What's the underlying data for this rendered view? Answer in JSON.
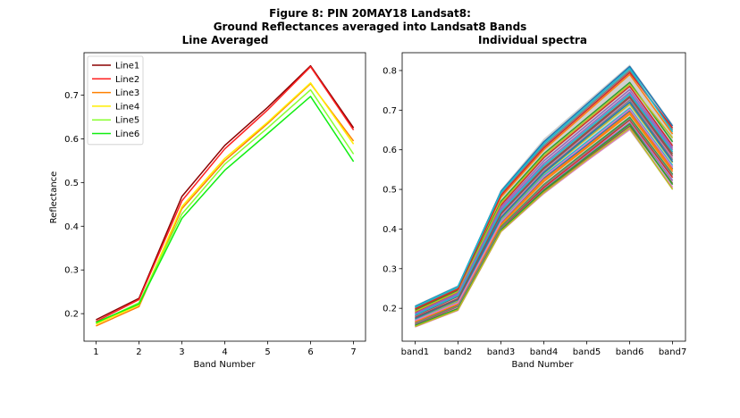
{
  "figure": {
    "title_line1": "Figure 8: PIN 20MAY18  Landsat8:",
    "title_line2": "Ground Reflectances averaged into Landsat8 Bands"
  },
  "chart_data": [
    {
      "type": "line",
      "title": "Line Averaged",
      "xlabel": "Band Number",
      "ylabel": "Reflectance",
      "x": [
        1,
        2,
        3,
        4,
        5,
        6,
        7
      ],
      "xticks": [
        "1",
        "2",
        "3",
        "4",
        "5",
        "6",
        "7"
      ],
      "xlim": [
        0.72,
        7.28
      ],
      "ylim": [
        0.137,
        0.797
      ],
      "yticks": [
        "0.2",
        "0.3",
        "0.4",
        "0.5",
        "0.6",
        "0.7"
      ],
      "legend": "top-left",
      "series": [
        {
          "name": "Line1",
          "color": "#8b0000",
          "values": [
            0.186,
            0.235,
            0.468,
            0.585,
            0.672,
            0.767,
            0.625
          ]
        },
        {
          "name": "Line2",
          "color": "#ff2020",
          "values": [
            0.182,
            0.232,
            0.458,
            0.577,
            0.666,
            0.765,
            0.62
          ]
        },
        {
          "name": "Line3",
          "color": "#ff8000",
          "values": [
            0.172,
            0.216,
            0.44,
            0.55,
            0.635,
            0.726,
            0.595
          ]
        },
        {
          "name": "Line4",
          "color": "#ffee00",
          "values": [
            0.176,
            0.22,
            0.445,
            0.555,
            0.638,
            0.728,
            0.588
          ]
        },
        {
          "name": "Line5",
          "color": "#88ff30",
          "values": [
            0.178,
            0.225,
            0.428,
            0.542,
            0.625,
            0.712,
            0.565
          ]
        },
        {
          "name": "Line6",
          "color": "#11ee11",
          "values": [
            0.18,
            0.222,
            0.418,
            0.528,
            0.612,
            0.697,
            0.548
          ]
        }
      ]
    },
    {
      "type": "line",
      "title": "Individual spectra",
      "xlabel": "Band Number",
      "ylabel": "",
      "x": [
        1,
        2,
        3,
        4,
        5,
        6,
        7
      ],
      "xticks": [
        "band1",
        "band2",
        "band3",
        "band4",
        "band5",
        "band6",
        "band7"
      ],
      "xlim": [
        0.7,
        7.3
      ],
      "ylim": [
        0.117,
        0.845
      ],
      "yticks": [
        "0.2",
        "0.3",
        "0.4",
        "0.5",
        "0.6",
        "0.7",
        "0.8"
      ],
      "series_colors": [
        "#1f77b4",
        "#ff7f0e",
        "#2ca02c",
        "#d62728",
        "#9467bd",
        "#8c564b",
        "#e377c2",
        "#7f7f7f",
        "#bcbd22",
        "#17becf"
      ],
      "envelope_low": [
        0.152,
        0.193,
        0.392,
        0.487,
        0.57,
        0.648,
        0.498
      ],
      "envelope_high": [
        0.208,
        0.258,
        0.5,
        0.628,
        0.722,
        0.815,
        0.665
      ],
      "series": [
        {
          "values": [
            0.205,
            0.255,
            0.495,
            0.62,
            0.715,
            0.81,
            0.66
          ]
        },
        {
          "values": [
            0.2,
            0.25,
            0.48,
            0.6,
            0.695,
            0.79,
            0.64
          ]
        },
        {
          "values": [
            0.195,
            0.245,
            0.47,
            0.59,
            0.68,
            0.77,
            0.62
          ]
        },
        {
          "values": [
            0.19,
            0.24,
            0.46,
            0.58,
            0.67,
            0.76,
            0.61
          ]
        },
        {
          "values": [
            0.185,
            0.235,
            0.45,
            0.565,
            0.655,
            0.745,
            0.6
          ]
        },
        {
          "values": [
            0.18,
            0.23,
            0.44,
            0.555,
            0.645,
            0.735,
            0.59
          ]
        },
        {
          "values": [
            0.178,
            0.225,
            0.435,
            0.55,
            0.64,
            0.73,
            0.58
          ]
        },
        {
          "values": [
            0.175,
            0.22,
            0.43,
            0.545,
            0.635,
            0.725,
            0.575
          ]
        },
        {
          "values": [
            0.172,
            0.218,
            0.425,
            0.54,
            0.628,
            0.715,
            0.568
          ]
        },
        {
          "values": [
            0.17,
            0.215,
            0.42,
            0.535,
            0.62,
            0.705,
            0.56
          ]
        },
        {
          "values": [
            0.168,
            0.212,
            0.415,
            0.528,
            0.612,
            0.698,
            0.552
          ]
        },
        {
          "values": [
            0.165,
            0.21,
            0.41,
            0.52,
            0.605,
            0.69,
            0.545
          ]
        },
        {
          "values": [
            0.163,
            0.207,
            0.405,
            0.512,
            0.598,
            0.682,
            0.538
          ]
        },
        {
          "values": [
            0.16,
            0.205,
            0.4,
            0.505,
            0.59,
            0.675,
            0.53
          ]
        },
        {
          "values": [
            0.158,
            0.2,
            0.398,
            0.5,
            0.585,
            0.668,
            0.522
          ]
        },
        {
          "values": [
            0.155,
            0.198,
            0.395,
            0.495,
            0.578,
            0.66,
            0.515
          ]
        },
        {
          "values": [
            0.153,
            0.195,
            0.393,
            0.49,
            0.572,
            0.652,
            0.505
          ]
        },
        {
          "values": [
            0.2,
            0.252,
            0.49,
            0.61,
            0.705,
            0.8,
            0.65
          ]
        },
        {
          "values": [
            0.192,
            0.242,
            0.465,
            0.585,
            0.675,
            0.765,
            0.63
          ]
        },
        {
          "values": [
            0.183,
            0.232,
            0.445,
            0.56,
            0.65,
            0.74,
            0.595
          ]
        },
        {
          "values": [
            0.174,
            0.222,
            0.428,
            0.542,
            0.632,
            0.72,
            0.57
          ]
        },
        {
          "values": [
            0.166,
            0.211,
            0.412,
            0.525,
            0.608,
            0.695,
            0.55
          ]
        },
        {
          "values": [
            0.157,
            0.199,
            0.397,
            0.498,
            0.582,
            0.665,
            0.512
          ]
        },
        {
          "values": [
            0.198,
            0.248,
            0.485,
            0.605,
            0.7,
            0.795,
            0.655
          ]
        },
        {
          "values": [
            0.187,
            0.238,
            0.455,
            0.572,
            0.662,
            0.752,
            0.605
          ]
        },
        {
          "values": [
            0.177,
            0.224,
            0.438,
            0.552,
            0.642,
            0.732,
            0.585
          ]
        },
        {
          "values": [
            0.169,
            0.214,
            0.418,
            0.532,
            0.616,
            0.702,
            0.556
          ]
        },
        {
          "values": [
            0.162,
            0.206,
            0.403,
            0.51,
            0.595,
            0.678,
            0.535
          ]
        },
        {
          "values": [
            0.154,
            0.196,
            0.394,
            0.492,
            0.575,
            0.655,
            0.5
          ]
        },
        {
          "values": [
            0.203,
            0.254,
            0.492,
            0.615,
            0.71,
            0.805,
            0.645
          ]
        }
      ]
    }
  ]
}
